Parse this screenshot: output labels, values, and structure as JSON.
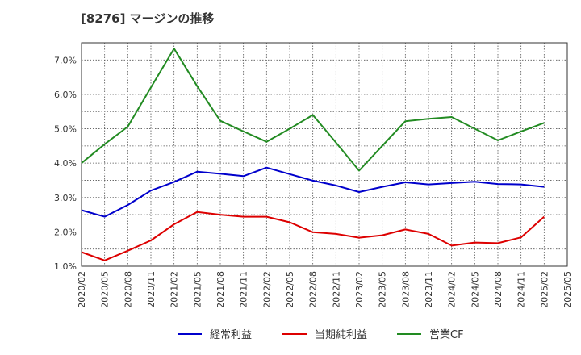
{
  "title": "[8276]  マージンの推移",
  "chart_data": {
    "type": "line",
    "title": "[8276]  マージンの推移",
    "xlabel": "",
    "ylabel": "",
    "x": [
      "2020/02",
      "2020/05",
      "2020/08",
      "2020/11",
      "2021/02",
      "2021/05",
      "2021/08",
      "2021/11",
      "2022/02",
      "2022/05",
      "2022/08",
      "2022/11",
      "2023/02",
      "2023/05",
      "2023/08",
      "2023/11",
      "2024/02",
      "2024/05",
      "2024/08",
      "2024/11",
      "2025/02"
    ],
    "x_ticks": [
      "2020/02",
      "2020/05",
      "2020/08",
      "2020/11",
      "2021/02",
      "2021/05",
      "2021/08",
      "2021/11",
      "2022/02",
      "2022/05",
      "2022/08",
      "2022/11",
      "2023/02",
      "2023/05",
      "2023/08",
      "2023/11",
      "2024/02",
      "2024/05",
      "2024/08",
      "2024/11",
      "2025/02",
      "2025/05"
    ],
    "y_ticks": [
      "1.0%",
      "2.0%",
      "3.0%",
      "4.0%",
      "5.0%",
      "6.0%",
      "7.0%"
    ],
    "ylim": [
      1.0,
      7.5
    ],
    "grid": true,
    "legend_position": "bottom",
    "series": [
      {
        "name": "経常利益",
        "color": "#0000cc",
        "values": [
          2.63,
          2.44,
          2.78,
          3.2,
          3.45,
          3.75,
          3.69,
          3.62,
          3.87,
          3.68,
          3.49,
          3.35,
          3.16,
          3.31,
          3.44,
          3.38,
          3.42,
          3.46,
          3.39,
          3.38,
          3.31
        ]
      },
      {
        "name": "当期純利益",
        "color": "#dd0000",
        "values": [
          1.41,
          1.17,
          1.45,
          1.75,
          2.22,
          2.58,
          2.5,
          2.44,
          2.44,
          2.28,
          1.99,
          1.94,
          1.83,
          1.9,
          2.07,
          1.94,
          1.6,
          1.69,
          1.67,
          1.84,
          2.44
        ]
      },
      {
        "name": "営業CF",
        "color": "#228b22",
        "values": [
          4.0,
          4.55,
          5.06,
          6.2,
          7.33,
          6.24,
          5.23,
          4.92,
          4.62,
          5.0,
          5.4,
          4.6,
          3.78,
          4.5,
          5.22,
          5.29,
          5.34,
          5.0,
          4.66,
          4.92,
          5.17
        ]
      }
    ]
  }
}
